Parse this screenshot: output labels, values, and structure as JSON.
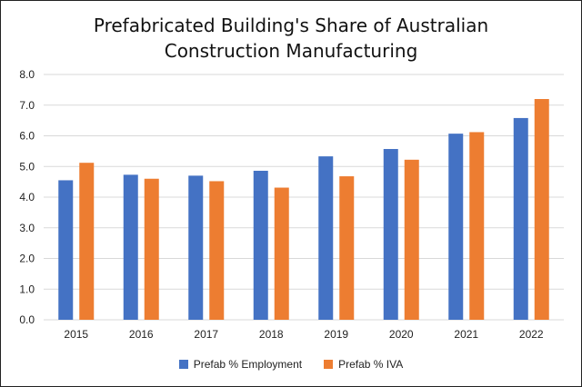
{
  "chart_data": {
    "type": "bar",
    "title": "Prefabricated Building's Share of Australian Construction Manufacturing",
    "categories": [
      "2015",
      "2016",
      "2017",
      "2018",
      "2019",
      "2020",
      "2021",
      "2022"
    ],
    "series": [
      {
        "name": "Prefab % Employment",
        "color": "#4472C4",
        "values": [
          4.55,
          4.73,
          4.7,
          4.86,
          5.33,
          5.57,
          6.07,
          6.58
        ]
      },
      {
        "name": "Prefab % IVA",
        "color": "#ED7D31",
        "values": [
          5.12,
          4.6,
          4.52,
          4.31,
          4.68,
          5.22,
          6.12,
          7.2
        ]
      }
    ],
    "ylim": [
      0,
      8
    ],
    "yticks": [
      "0.0",
      "1.0",
      "2.0",
      "3.0",
      "4.0",
      "5.0",
      "6.0",
      "7.0",
      "8.0"
    ],
    "grid": true,
    "legend_position": "bottom"
  }
}
